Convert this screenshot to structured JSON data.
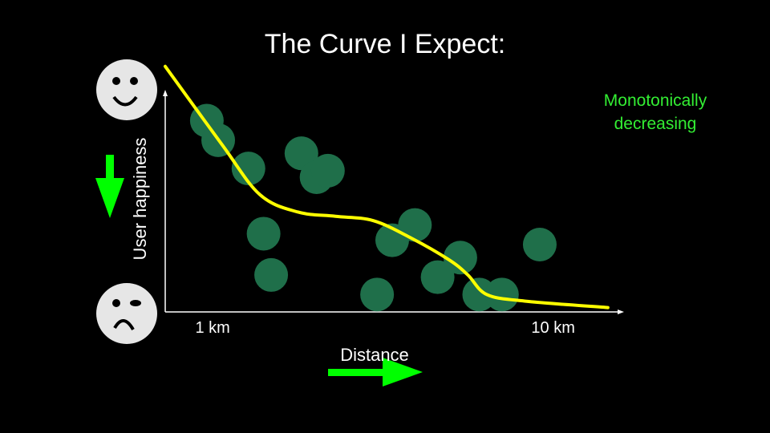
{
  "slide": {
    "title": "The Curve I Expect:",
    "annotation_lines": [
      "Monotonically",
      "decreasing"
    ]
  },
  "colors": {
    "background": "#000000",
    "text": "#ffffff",
    "annotation": "#33ee33",
    "point": "#1f6f4a",
    "curve": "#ffff00",
    "arrow": "#00ff00",
    "face": "#e6e6e6"
  },
  "icons": {
    "top_face": "happy-face-icon",
    "bottom_face": "sad-face-icon",
    "y_arrow": "down-arrow-icon",
    "x_arrow": "right-arrow-icon"
  },
  "chart_data": {
    "type": "scatter",
    "title": "The Curve I Expect:",
    "xlabel": "Distance",
    "ylabel": "User happiness",
    "x_tick_labels": [
      {
        "x": 1,
        "label": "1 km"
      },
      {
        "x": 10,
        "label": "10 km"
      }
    ],
    "xlim": [
      0,
      12
    ],
    "ylim": [
      0,
      100
    ],
    "grid": false,
    "legend": "none",
    "points": [
      {
        "x": 1.1,
        "y": 88
      },
      {
        "x": 1.4,
        "y": 79
      },
      {
        "x": 2.2,
        "y": 66
      },
      {
        "x": 2.6,
        "y": 36
      },
      {
        "x": 2.8,
        "y": 17
      },
      {
        "x": 3.6,
        "y": 73
      },
      {
        "x": 4.0,
        "y": 62
      },
      {
        "x": 4.3,
        "y": 65
      },
      {
        "x": 5.6,
        "y": 8
      },
      {
        "x": 6.0,
        "y": 33
      },
      {
        "x": 6.6,
        "y": 40
      },
      {
        "x": 7.2,
        "y": 16
      },
      {
        "x": 7.8,
        "y": 25
      },
      {
        "x": 8.3,
        "y": 8
      },
      {
        "x": 8.9,
        "y": 8
      },
      {
        "x": 9.9,
        "y": 31
      }
    ],
    "curve": [
      {
        "x": 0,
        "y": 113
      },
      {
        "x": 1.5,
        "y": 77
      },
      {
        "x": 2.5,
        "y": 54
      },
      {
        "x": 3.5,
        "y": 46
      },
      {
        "x": 4.5,
        "y": 44
      },
      {
        "x": 5.5,
        "y": 42
      },
      {
        "x": 6.5,
        "y": 34
      },
      {
        "x": 7.5,
        "y": 24
      },
      {
        "x": 8.0,
        "y": 17
      },
      {
        "x": 8.5,
        "y": 8
      },
      {
        "x": 9.5,
        "y": 5
      },
      {
        "x": 11.7,
        "y": 2
      }
    ]
  }
}
